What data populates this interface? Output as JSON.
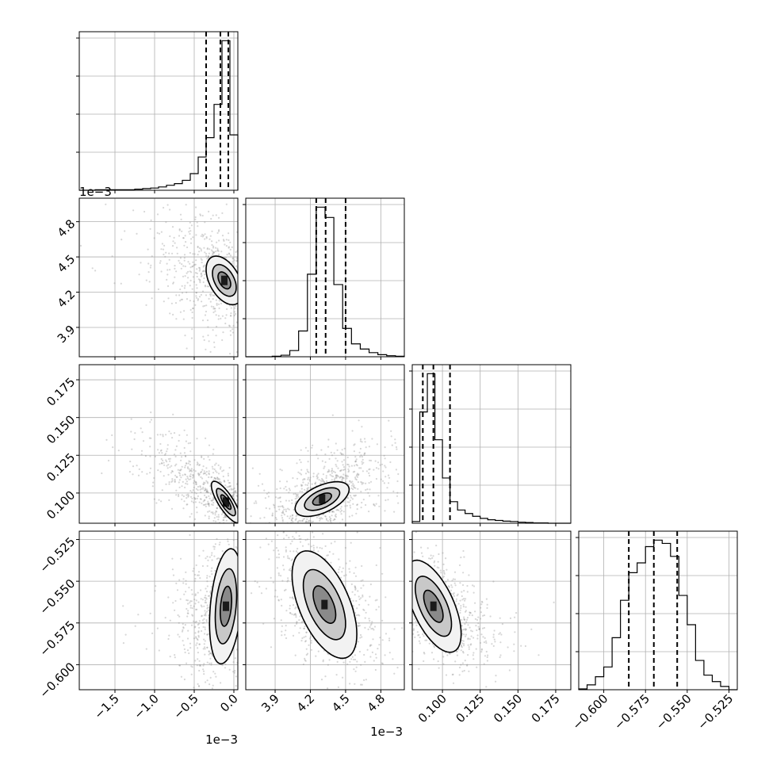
{
  "chart_data": {
    "type": "corner",
    "grid_lines": true,
    "parameters": [
      {
        "index": 0,
        "range": [
          -1.95,
          0.05
        ],
        "scale_label": "1e−3",
        "ticks": [
          -1.5,
          -1.0,
          -0.5,
          0.0
        ],
        "tick_labels": [
          "−1.5",
          "−1.0",
          "−0.5",
          "0.0"
        ],
        "quantiles": [
          -0.35,
          -0.17,
          -0.07
        ],
        "histogram": {
          "edges": [
            -1.95,
            -1.85,
            -1.75,
            -1.65,
            -1.55,
            -1.45,
            -1.35,
            -1.25,
            -1.15,
            -1.05,
            -0.95,
            -0.85,
            -0.75,
            -0.65,
            -0.55,
            -0.45,
            -0.35,
            -0.25,
            -0.15,
            -0.05,
            0.05
          ],
          "counts": [
            0,
            0,
            1,
            1,
            1,
            1,
            1,
            2,
            3,
            4,
            6,
            9,
            12,
            18,
            30,
            60,
            95,
            155,
            270,
            100
          ]
        }
      },
      {
        "index": 1,
        "range": [
          3.65,
          5.0
        ],
        "scale_label": "1e−3",
        "ticks": [
          3.9,
          4.2,
          4.5,
          4.8
        ],
        "tick_labels": [
          "3.9",
          "4.2",
          "4.5",
          "4.8"
        ],
        "quantiles": [
          4.25,
          4.33,
          4.5
        ],
        "histogram": {
          "edges": [
            3.65,
            3.725,
            3.8,
            3.875,
            3.95,
            4.025,
            4.1,
            4.175,
            4.25,
            4.325,
            4.4,
            4.475,
            4.55,
            4.625,
            4.7,
            4.775,
            4.85,
            4.925,
            5.0
          ],
          "counts": [
            0,
            0,
            0,
            1,
            3,
            12,
            50,
            160,
            290,
            270,
            140,
            55,
            25,
            15,
            8,
            4,
            2,
            1
          ]
        }
      },
      {
        "index": 2,
        "range": [
          0.08,
          0.185
        ],
        "ticks": [
          0.1,
          0.125,
          0.15,
          0.175
        ],
        "tick_labels": [
          "0.100",
          "0.125",
          "0.150",
          "0.175"
        ],
        "quantiles": [
          0.087,
          0.094,
          0.105
        ],
        "histogram": {
          "edges": [
            0.08,
            0.085,
            0.09,
            0.095,
            0.1,
            0.105,
            0.11,
            0.115,
            0.12,
            0.125,
            0.13,
            0.135,
            0.14,
            0.145,
            0.15,
            0.155,
            0.16,
            0.165,
            0.17,
            0.175,
            0.18,
            0.185
          ],
          "counts": [
            5,
            320,
            430,
            240,
            130,
            62,
            38,
            28,
            20,
            14,
            10,
            8,
            6,
            5,
            3,
            2,
            1,
            1,
            0,
            0,
            0
          ]
        }
      },
      {
        "index": 3,
        "range": [
          -0.615,
          -0.52
        ],
        "ticks": [
          -0.6,
          -0.575,
          -0.55,
          -0.525
        ],
        "tick_labels": [
          "−0.600",
          "−0.575",
          "−0.550",
          "−0.525"
        ],
        "quantiles": [
          -0.585,
          -0.57,
          -0.556
        ],
        "histogram": {
          "edges": [
            -0.615,
            -0.61,
            -0.605,
            -0.6,
            -0.595,
            -0.59,
            -0.585,
            -0.58,
            -0.575,
            -0.57,
            -0.565,
            -0.56,
            -0.555,
            -0.55,
            -0.545,
            -0.54,
            -0.535,
            -0.53,
            -0.525,
            -0.52
          ],
          "counts": [
            0.5,
            3,
            8,
            14,
            32,
            55,
            72,
            78,
            88,
            92,
            90,
            82,
            58,
            40,
            18,
            9,
            5,
            2,
            0
          ]
        }
      }
    ],
    "pairs": [
      {
        "x": 0,
        "y": 1,
        "center": [
          -0.12,
          4.3
        ],
        "spread": [
          0.1,
          0.09
        ],
        "correlation": -0.45,
        "outer_spread": [
          0.45,
          0.28
        ],
        "outer_correlation": -0.45
      },
      {
        "x": 0,
        "y": 2,
        "center": [
          -0.1,
          0.094
        ],
        "spread": [
          0.08,
          0.006
        ],
        "correlation": -0.8,
        "outer_spread": [
          0.45,
          0.02
        ],
        "outer_correlation": -0.8
      },
      {
        "x": 1,
        "y": 2,
        "center": [
          4.3,
          0.096
        ],
        "spread": [
          0.1,
          0.005
        ],
        "correlation": 0.55,
        "outer_spread": [
          0.25,
          0.018
        ],
        "outer_correlation": 0.6
      },
      {
        "x": 0,
        "y": 3,
        "center": [
          -0.1,
          -0.565
        ],
        "spread": [
          0.09,
          0.015
        ],
        "correlation": 0.3,
        "outer_spread": [
          0.3,
          0.022
        ],
        "outer_correlation": 0.3
      },
      {
        "x": 1,
        "y": 3,
        "center": [
          4.32,
          -0.564
        ],
        "spread": [
          0.12,
          0.014
        ],
        "correlation": -0.55,
        "outer_spread": [
          0.2,
          0.02
        ],
        "outer_correlation": -0.5
      },
      {
        "x": 2,
        "y": 3,
        "center": [
          0.094,
          -0.565
        ],
        "spread": [
          0.008,
          0.012
        ],
        "correlation": -0.6,
        "outer_spread": [
          0.018,
          0.018
        ],
        "outer_correlation": -0.6
      }
    ]
  }
}
